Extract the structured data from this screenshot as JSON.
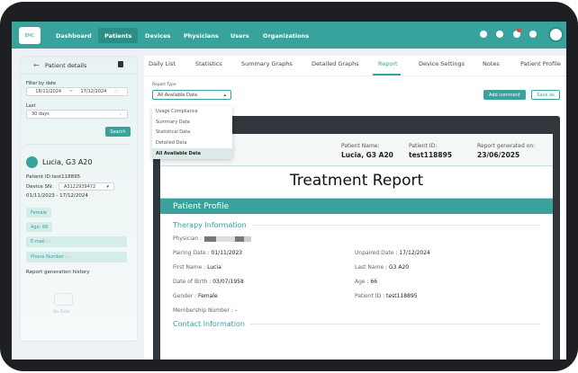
{
  "header": {
    "logo_text": "BMC",
    "nav": [
      "Dashboard",
      "Patients",
      "Devices",
      "Physicians",
      "Users",
      "Organizations"
    ],
    "active_nav": "Patients",
    "notification_count": "9",
    "colors": {
      "primary": "#38a39c"
    }
  },
  "sidebar": {
    "title": "Patient details",
    "filter_label": "Filter by date",
    "date_from": "18/11/2024",
    "date_sep": "~",
    "date_to": "17/12/2024",
    "last_label": "Last",
    "last_value": "30 days",
    "search_label": "Search",
    "patient_name": "Lucia, G3 A20",
    "patient_id": "Patient ID:test118895",
    "device_sn_label": "Device SN:",
    "device_sn": "A3122939472",
    "date_range": "01/11/2023 - 17/12/2024",
    "tags": [
      "Female",
      "Age: 66",
      "E-mail : -",
      "Phone Number : -"
    ],
    "history_label": "Report generation history",
    "no_data": "No Data"
  },
  "tabs": [
    "Daily List",
    "Statistics",
    "Summary Graphs",
    "Detailed Graphs",
    "Report",
    "Device Settings",
    "Notes",
    "Patient Profile"
  ],
  "active_tab": "Report",
  "report_type": {
    "label": "Report Type",
    "value": "All Available Data",
    "options": [
      "Usage Compliance",
      "Summary Data",
      "Statistical Data",
      "Detailed Data",
      "All Available Data"
    ]
  },
  "buttons": {
    "add_comment": "Add comment",
    "save_as": "Save as"
  },
  "report": {
    "patient_name_label": "Patient Name:",
    "patient_name": "Lucia, G3 A20",
    "patient_id_label": "Patient ID:",
    "patient_id": "test118895",
    "generated_label": "Report generated on:",
    "generated": "23/06/2025",
    "title": "Treatment Report",
    "section": "Patient Profile",
    "therapy_title": "Therapy Information",
    "physician_label": "Physician :",
    "fields": [
      {
        "k": "Pairing Date :",
        "v": "01/11/2023"
      },
      {
        "k": "Unpaired Date :",
        "v": "17/12/2024"
      },
      {
        "k": "First Name :",
        "v": "Lucia"
      },
      {
        "k": "Last Name :",
        "v": "G3 A20"
      },
      {
        "k": "Date of Birth :",
        "v": "03/07/1958"
      },
      {
        "k": "Age :",
        "v": "66"
      },
      {
        "k": "Gender :",
        "v": "Female"
      },
      {
        "k": "Patient ID :",
        "v": "test118895"
      },
      {
        "k": "Membership Number :",
        "v": "-"
      }
    ],
    "contact_title": "Contact Information"
  }
}
